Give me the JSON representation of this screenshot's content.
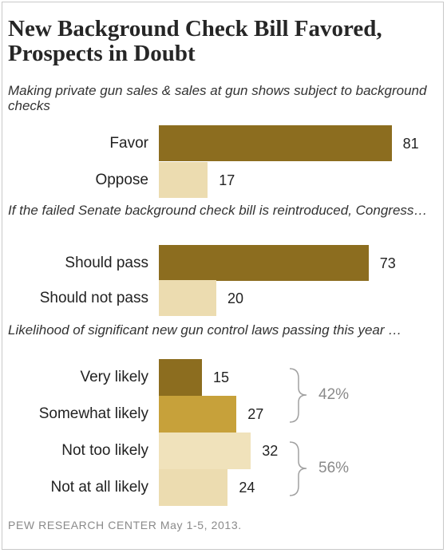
{
  "title": "New Background Check Bill Favored, Prospects in Doubt",
  "source": "PEW RESEARCH CENTER May 1-5, 2013.",
  "colors": {
    "dark": "#8c6d1f",
    "light": "#ecdcb0",
    "medium": "#c7a13a",
    "pale": "#f0e2bb"
  },
  "chart_data": [
    {
      "type": "bar",
      "title": "Making private gun sales & sales at gun shows subject to background checks",
      "categories": [
        "Favor",
        "Oppose"
      ],
      "values": [
        81,
        17
      ]
    },
    {
      "type": "bar",
      "title": "If the failed Senate background check bill is reintroduced, Congress…",
      "categories": [
        "Should pass",
        "Should not pass"
      ],
      "values": [
        73,
        20
      ]
    },
    {
      "type": "bar",
      "title": "Likelihood of significant new gun control laws passing this year …",
      "categories": [
        "Very likely",
        "Somewhat likely",
        "Not too likely",
        "Not at all likely"
      ],
      "values": [
        15,
        27,
        32,
        24
      ],
      "brackets": [
        {
          "label": "42%",
          "categories": [
            "Very likely",
            "Somewhat likely"
          ]
        },
        {
          "label": "56%",
          "categories": [
            "Not too likely",
            "Not at all likely"
          ]
        }
      ]
    }
  ]
}
